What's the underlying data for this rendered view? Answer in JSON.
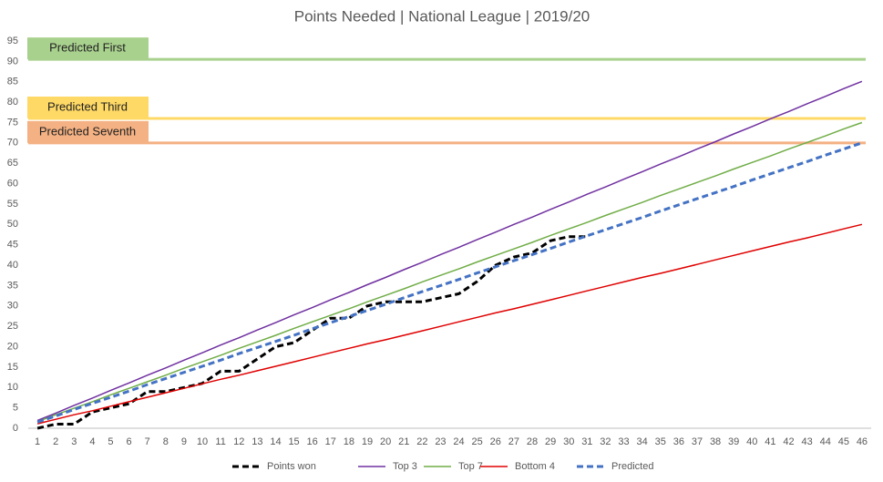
{
  "chart_data": {
    "type": "line",
    "title": "Points Needed  | National League | 2019/20",
    "categories": [
      1,
      2,
      3,
      4,
      5,
      6,
      7,
      8,
      9,
      10,
      11,
      12,
      13,
      14,
      15,
      16,
      17,
      18,
      19,
      20,
      21,
      22,
      23,
      24,
      25,
      26,
      27,
      28,
      29,
      30,
      31,
      32,
      33,
      34,
      35,
      36,
      37,
      38,
      39,
      40,
      41,
      42,
      43,
      44,
      45,
      46
    ],
    "ylim": [
      0,
      95
    ],
    "yticks": [
      0,
      5,
      10,
      15,
      20,
      25,
      30,
      35,
      40,
      45,
      50,
      55,
      60,
      65,
      70,
      75,
      80,
      85,
      90,
      95
    ],
    "grid": false,
    "legend": "bottom",
    "reference_lines": [
      {
        "label": "Predicted First",
        "value": 90.5,
        "color": "#a9d18e",
        "box_color": "#a9d18e"
      },
      {
        "label": "Predicted Third",
        "value": 76,
        "color": "#ffd966",
        "box_color": "#ffd966"
      },
      {
        "label": "Predicted Seventh",
        "value": 70,
        "color": "#f4b183",
        "box_color": "#f4b183"
      }
    ],
    "series": [
      {
        "name": "Points won",
        "color": "#000000",
        "dash": true,
        "width": 3,
        "values": [
          0,
          1,
          1,
          4,
          5,
          6,
          9,
          9,
          10,
          11,
          14,
          14,
          17,
          20,
          21,
          24,
          27,
          27,
          30,
          31,
          31,
          31,
          32,
          33,
          36,
          40,
          42,
          43,
          46,
          47,
          47,
          null,
          null,
          null,
          null,
          null,
          null,
          null,
          null,
          null,
          null,
          null,
          null,
          null,
          null,
          null
        ]
      },
      {
        "name": "Top 3",
        "color": "#7030a0",
        "dash": false,
        "width": 1.5,
        "values": [
          1.9,
          3.7,
          5.6,
          7.4,
          9.3,
          11.1,
          13.0,
          14.8,
          16.7,
          18.5,
          20.4,
          22.2,
          24.1,
          25.9,
          27.8,
          29.6,
          31.5,
          33.3,
          35.2,
          37.0,
          38.9,
          40.7,
          42.6,
          44.4,
          46.3,
          48.1,
          50.0,
          51.8,
          53.7,
          55.5,
          57.4,
          59.2,
          61.1,
          62.9,
          64.8,
          66.6,
          68.5,
          70.3,
          72.2,
          74.0,
          75.9,
          77.7,
          79.6,
          81.4,
          83.3,
          85.1
        ]
      },
      {
        "name": "Top 7",
        "color": "#70ad47",
        "dash": false,
        "width": 1.5,
        "values": [
          1.6,
          3.3,
          4.9,
          6.5,
          8.2,
          9.8,
          11.4,
          13.0,
          14.7,
          16.3,
          17.9,
          19.6,
          21.2,
          22.8,
          24.5,
          26.1,
          27.7,
          29.3,
          31.0,
          32.6,
          34.2,
          35.9,
          37.5,
          39.1,
          40.8,
          42.4,
          44.0,
          45.6,
          47.3,
          48.9,
          50.5,
          52.2,
          53.8,
          55.4,
          57.1,
          58.7,
          60.3,
          61.9,
          63.6,
          65.2,
          66.8,
          68.5,
          70.1,
          71.7,
          73.4,
          75.0
        ]
      },
      {
        "name": "Bottom 4",
        "color": "#e00000",
        "dash": false,
        "width": 1.5,
        "values": [
          1.1,
          2.2,
          3.3,
          4.3,
          5.4,
          6.5,
          7.6,
          8.7,
          9.8,
          10.9,
          12.0,
          13.0,
          14.1,
          15.2,
          16.3,
          17.4,
          18.5,
          19.6,
          20.7,
          21.7,
          22.8,
          23.9,
          25.0,
          26.1,
          27.2,
          28.3,
          29.3,
          30.4,
          31.5,
          32.6,
          33.7,
          34.8,
          35.9,
          37.0,
          38.0,
          39.1,
          40.2,
          41.3,
          42.4,
          43.5,
          44.6,
          45.7,
          46.7,
          47.8,
          48.9,
          50.0
        ]
      },
      {
        "name": "Predicted",
        "color": "#4472c4",
        "dash": true,
        "width": 3,
        "values": [
          1.5,
          3.0,
          4.6,
          6.1,
          7.6,
          9.1,
          10.7,
          12.2,
          13.7,
          15.2,
          16.7,
          18.3,
          19.8,
          21.3,
          22.8,
          24.4,
          25.9,
          27.4,
          28.9,
          30.4,
          32.0,
          33.5,
          35.0,
          36.5,
          38.1,
          39.6,
          41.1,
          42.6,
          44.1,
          45.7,
          47.2,
          48.7,
          50.2,
          51.7,
          53.3,
          54.8,
          56.3,
          57.8,
          59.3,
          60.9,
          62.4,
          63.9,
          65.4,
          67.0,
          68.5,
          70.0
        ]
      }
    ]
  }
}
